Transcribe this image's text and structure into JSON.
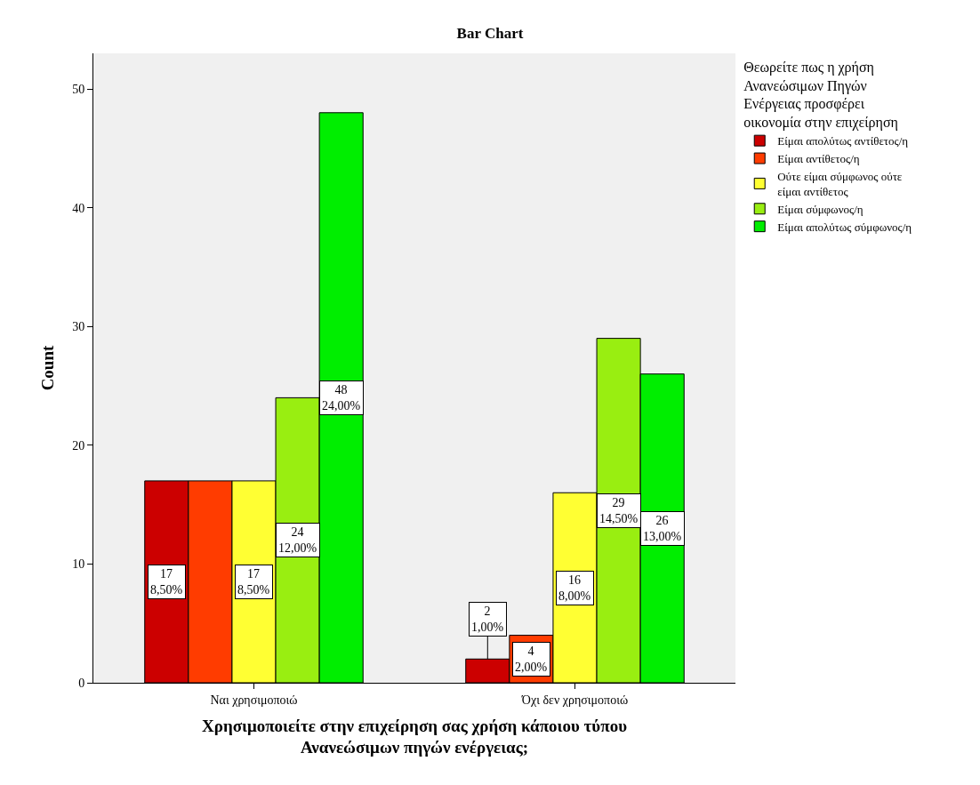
{
  "chart_data": {
    "type": "bar",
    "title": "Bar Chart",
    "xlabel": "Χρησιμοποιείτε στην επιχείρηση σας χρήση κάποιου τύπου\nΑνανεώσιμων πηγών ενέργειας;",
    "ylabel": "Count",
    "legend_title": "Θεωρείτε πως η χρήση\nΑνανεώσιμων Πηγών\nΕνέργειας προσφέρει\nοικονομία στην επιχείρηση",
    "categories": [
      "Ναι χρησιμοποιώ",
      "Όχι δεν χρησιμοποιώ"
    ],
    "series": [
      {
        "name": "Είμαι απολύτως αντίθετος/η",
        "color": "#cc0000",
        "values": [
          17,
          2
        ],
        "value_labels": [
          "17\n8,50%",
          "2\n1,00%"
        ]
      },
      {
        "name": "Είμαι αντίθετος/η",
        "color": "#ff3c00",
        "values": [
          17,
          4
        ],
        "value_labels": [
          null,
          "4\n2,00%"
        ]
      },
      {
        "name": "Ούτε είμαι σύμφωνος ούτε\nείμαι αντίθετος",
        "color": "#ffff33",
        "values": [
          17,
          16
        ],
        "value_labels": [
          "17\n8,50%",
          "16\n8,00%"
        ]
      },
      {
        "name": "Είμαι σύμφωνος/η",
        "color": "#99ee11",
        "values": [
          24,
          29
        ],
        "value_labels": [
          "24\n12,00%",
          "29\n14,50%"
        ]
      },
      {
        "name": "Είμαι απολύτως σύμφωνος/η",
        "color": "#00ee00",
        "values": [
          48,
          26
        ],
        "value_labels": [
          "48\n24,00%",
          "26\n13,00%"
        ]
      }
    ],
    "ylim": [
      0,
      53
    ],
    "yticks": [
      0,
      10,
      20,
      30,
      40,
      50
    ],
    "grid": false,
    "legend": "top right"
  }
}
